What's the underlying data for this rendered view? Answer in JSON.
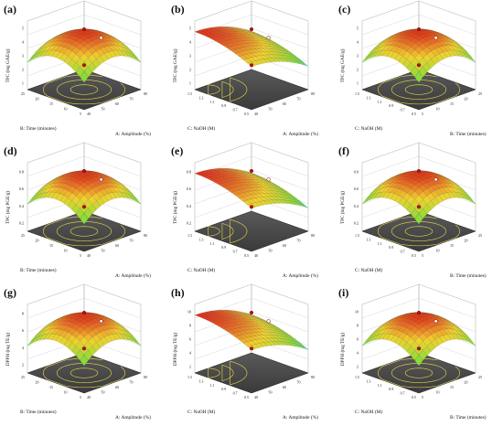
{
  "figure": {
    "background": "#ffffff"
  },
  "palette": {
    "surface_low": "#2fd0d6",
    "surface_mid": "#8bdc3a",
    "surface_high": "#f2d22e",
    "surface_top": "#e0241a",
    "floor": "#4a4a4a",
    "contour": "#e6d84a",
    "point_above": "#c01010",
    "point_below": "#ffffff"
  },
  "chart_data": [
    {
      "panel": "(a)",
      "type": "surface3d",
      "zlabel": "TPC (mg GAE/g)",
      "xlabel": "A: Amplitude (%)",
      "ylabel": "B: Time (minutes)",
      "zticks": [
        "1",
        "2",
        "3",
        "4",
        "5"
      ],
      "xticks": [
        "40",
        "50",
        "60",
        "70",
        "80"
      ],
      "yticks": [
        "5",
        "10",
        "15",
        "20",
        "25"
      ],
      "peak": "center"
    },
    {
      "panel": "(b)",
      "type": "surface3d",
      "zlabel": "TPC (mg GAE/g)",
      "xlabel": "A: Amplitude (%)",
      "ylabel": "C: NaOH (M)",
      "zticks": [
        "1",
        "2",
        "3",
        "4",
        "5"
      ],
      "xticks": [
        "40",
        "50",
        "60",
        "70",
        "80"
      ],
      "yticks": [
        "0.5",
        "0.7",
        "0.9",
        "1.1",
        "1.3",
        "1.5"
      ],
      "peak": "corner"
    },
    {
      "panel": "(c)",
      "type": "surface3d",
      "zlabel": "TPC (mg GAE/g)",
      "xlabel": "B: Time (minutes)",
      "ylabel": "C: NaOH (M)",
      "zticks": [
        "1",
        "2",
        "3",
        "4",
        "5"
      ],
      "xticks": [
        "5",
        "10",
        "15",
        "20",
        "25"
      ],
      "yticks": [
        "0.5",
        "0.7",
        "0.9",
        "1.1",
        "1.3",
        "1.5"
      ],
      "peak": "center"
    },
    {
      "panel": "(d)",
      "type": "surface3d",
      "zlabel": "TPC (mg PGE/g)",
      "xlabel": "A: Amplitude (%)",
      "ylabel": "B: Time (minutes)",
      "zticks": [
        "0.2",
        "0.4",
        "0.6",
        "0.8"
      ],
      "xticks": [
        "40",
        "50",
        "60",
        "70",
        "80"
      ],
      "yticks": [
        "5",
        "10",
        "15",
        "20",
        "25"
      ],
      "peak": "center"
    },
    {
      "panel": "(e)",
      "type": "surface3d",
      "zlabel": "TPC (mg PGE/g)",
      "xlabel": "A: Amplitude (%)",
      "ylabel": "C: NaOH (M)",
      "zticks": [
        "0.2",
        "0.4",
        "0.6",
        "0.8"
      ],
      "xticks": [
        "40",
        "50",
        "60",
        "70",
        "80"
      ],
      "yticks": [
        "0.5",
        "0.7",
        "0.9",
        "1.1",
        "1.3",
        "1.5"
      ],
      "peak": "corner"
    },
    {
      "panel": "(f)",
      "type": "surface3d",
      "zlabel": "TPC (mg PGE/g)",
      "xlabel": "B: Time (minutes)",
      "ylabel": "C: NaOH (M)",
      "zticks": [
        "0.2",
        "0.4",
        "0.6",
        "0.8"
      ],
      "xticks": [
        "5",
        "10",
        "15",
        "20",
        "25"
      ],
      "yticks": [
        "0.5",
        "0.7",
        "0.9",
        "1.1",
        "1.3",
        "1.5"
      ],
      "peak": "center"
    },
    {
      "panel": "(g)",
      "type": "surface3d",
      "zlabel": "DPPH (mg TE/g)",
      "xlabel": "A: Amplitude (%)",
      "ylabel": "B: Time (minutes)",
      "zticks": [
        "2",
        "4",
        "6",
        "8"
      ],
      "xticks": [
        "40",
        "50",
        "60",
        "70",
        "80"
      ],
      "yticks": [
        "5",
        "10",
        "15",
        "20",
        "25"
      ],
      "peak": "center"
    },
    {
      "panel": "(h)",
      "type": "surface3d",
      "zlabel": "DPPH (mg TE/g)",
      "xlabel": "A: Amplitude (%)",
      "ylabel": "C: NaOH (M)",
      "zticks": [
        "2",
        "4",
        "6",
        "8",
        "10"
      ],
      "xticks": [
        "40",
        "50",
        "60",
        "70",
        "80"
      ],
      "yticks": [
        "0.5",
        "0.7",
        "0.9",
        "1.1",
        "1.3",
        "1.5"
      ],
      "peak": "corner"
    },
    {
      "panel": "(i)",
      "type": "surface3d",
      "zlabel": "DPPH (mg TE/g)",
      "xlabel": "B: Time (minutes)",
      "ylabel": "C: NaOH (M)",
      "zticks": [
        "2",
        "4",
        "6",
        "8",
        "10"
      ],
      "xticks": [
        "5",
        "10",
        "15",
        "20",
        "25"
      ],
      "yticks": [
        "0.5",
        "0.7",
        "0.9",
        "1.1",
        "1.3",
        "1.5"
      ],
      "peak": "center"
    }
  ]
}
